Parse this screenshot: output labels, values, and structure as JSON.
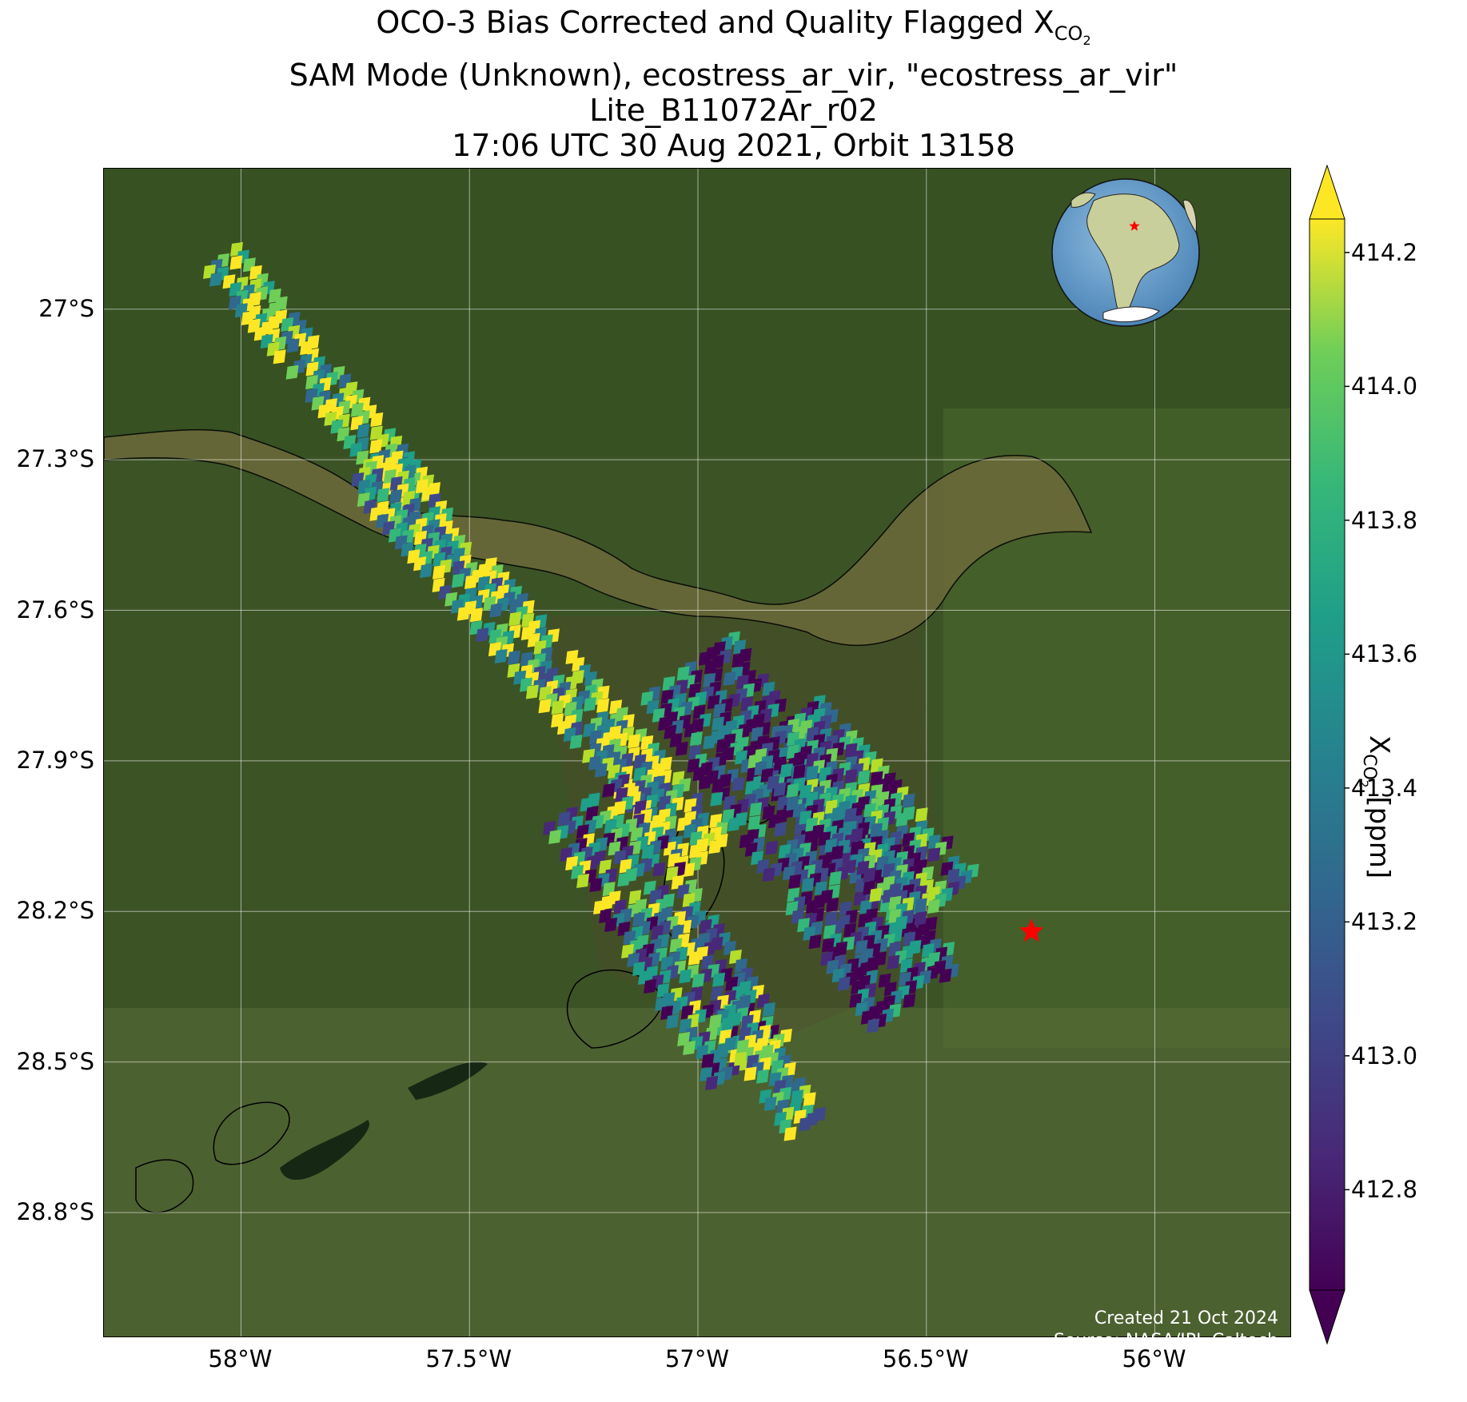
{
  "title": {
    "line1_prefix": "OCO-3 Bias Corrected and Quality Flagged X",
    "line1_sub": "CO",
    "line1_subsub": "2",
    "line2": "SAM Mode (Unknown), ecostress_ar_vir, \"ecostress_ar_vir\"",
    "line3": "Lite_B11072Ar_r02",
    "line4": "17:06 UTC 30 Aug 2021, Orbit 13158"
  },
  "map": {
    "lon_range": [
      -58.3,
      -55.7
    ],
    "lat_range": [
      -29.05,
      -26.72
    ],
    "lat_ticks": [
      {
        "value": -27.0,
        "label": "27°S"
      },
      {
        "value": -27.3,
        "label": "27.3°S"
      },
      {
        "value": -27.6,
        "label": "27.6°S"
      },
      {
        "value": -27.9,
        "label": "27.9°S"
      },
      {
        "value": -28.2,
        "label": "28.2°S"
      },
      {
        "value": -28.5,
        "label": "28.5°S"
      },
      {
        "value": -28.8,
        "label": "28.8°S"
      }
    ],
    "lon_ticks": [
      {
        "value": -58.0,
        "label": "58°W"
      },
      {
        "value": -57.5,
        "label": "57.5°W"
      },
      {
        "value": -57.0,
        "label": "57°W"
      },
      {
        "value": -56.5,
        "label": "56.5°W"
      },
      {
        "value": -56.0,
        "label": "56°W"
      }
    ],
    "target": {
      "lon": -56.27,
      "lat": -28.24,
      "color": "#ff0000",
      "icon": "star-icon"
    },
    "grid": true,
    "inset_globe": {
      "placement": "top-right",
      "marker": "star-icon"
    }
  },
  "colorbar": {
    "min": 412.65,
    "max": 414.25,
    "ticks": [
      "414.2",
      "414.0",
      "413.8",
      "413.6",
      "413.4",
      "413.2",
      "413.0",
      "412.8"
    ],
    "tick_values": [
      414.2,
      414.0,
      413.8,
      413.6,
      413.4,
      413.2,
      413.0,
      412.8
    ],
    "label_prefix": "X",
    "label_sub": "CO",
    "label_subsub": "2",
    "label_suffix": " [ppm]",
    "colormap": "viridis",
    "extend": "both"
  },
  "credit": {
    "line1": "Created 21 Oct 2024",
    "line2": "Source: NASA/JPL-Caltech"
  }
}
